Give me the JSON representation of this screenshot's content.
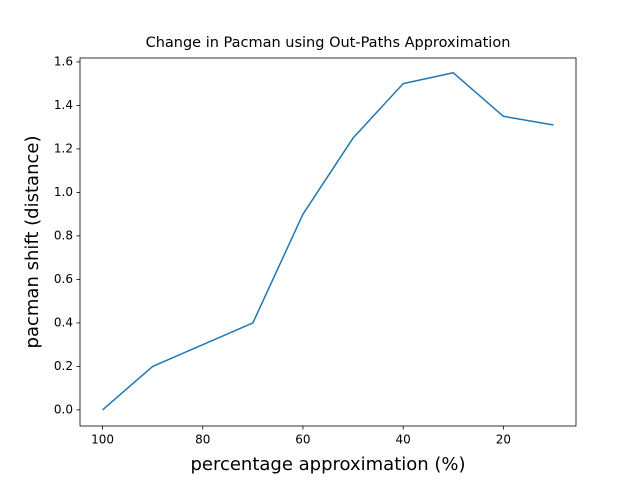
{
  "chart_data": {
    "type": "line",
    "title": "Change in Pacman using Out-Paths Approximation",
    "x_label": "percentage approximation (%)",
    "y_label": "pacman shift (distance)",
    "x": [
      100,
      90,
      80,
      70,
      60,
      50,
      40,
      30,
      20,
      10
    ],
    "series": [
      {
        "name": "pacman shift",
        "color": "#1f77b4",
        "values": [
          0,
          0.2,
          0.3,
          0.4,
          0.9,
          1.25,
          1.5,
          1.55,
          1.35,
          1.31
        ]
      }
    ],
    "xlim": [
      104.5,
      5.5
    ],
    "xticks": [
      100,
      80,
      60,
      40,
      20
    ],
    "ylim": [
      -0.074,
      1.618
    ],
    "yticks": [
      {
        "value": 0,
        "label": "0.0"
      },
      0.2,
      0.4,
      0.6,
      0.8,
      {
        "value": 1,
        "label": "1.0"
      },
      1.2,
      1.4,
      1.6
    ],
    "grid": false
  }
}
